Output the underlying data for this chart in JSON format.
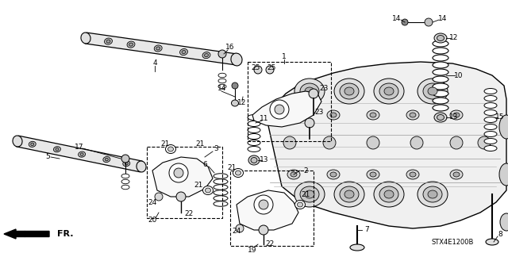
{
  "background_color": "#ffffff",
  "fig_width": 6.4,
  "fig_height": 3.19,
  "diagram_code": "STX4E1200B",
  "fr_label": "FR.",
  "font_size_labels": 6.5,
  "font_size_diagram_code": 6,
  "font_size_fr": 8
}
